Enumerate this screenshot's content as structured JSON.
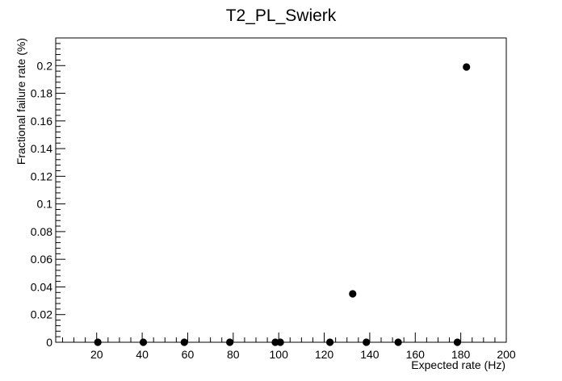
{
  "chart_data": {
    "type": "scatter",
    "title": "T2_PL_Swierk",
    "xlabel": "Expected rate (Hz)",
    "ylabel": "Fractional failure rate (%)",
    "xlim": [
      2,
      200
    ],
    "ylim": [
      0,
      0.22
    ],
    "x_ticks": [
      20,
      40,
      60,
      80,
      100,
      120,
      140,
      160,
      180,
      200
    ],
    "y_ticks": [
      0,
      0.02,
      0.04,
      0.06,
      0.08,
      0.1,
      0.12,
      0.14,
      0.16,
      0.18,
      0.2
    ],
    "y_tick_labels": [
      "0",
      "0.02",
      "0.04",
      "0.06",
      "0.08",
      "0.1",
      "0.12",
      "0.14",
      "0.16",
      "0.18",
      "0.2"
    ],
    "grid": false,
    "marker_color": "#000000",
    "points": [
      {
        "x": 20.5,
        "y": 0
      },
      {
        "x": 40.5,
        "y": 0
      },
      {
        "x": 58.5,
        "y": 0
      },
      {
        "x": 78.5,
        "y": 0
      },
      {
        "x": 98.5,
        "y": 0
      },
      {
        "x": 100.7,
        "y": 0
      },
      {
        "x": 122.5,
        "y": 0
      },
      {
        "x": 132.5,
        "y": 0.035
      },
      {
        "x": 138.5,
        "y": 0
      },
      {
        "x": 152.5,
        "y": 0
      },
      {
        "x": 178.5,
        "y": 0
      },
      {
        "x": 182.5,
        "y": 0.199
      }
    ]
  }
}
